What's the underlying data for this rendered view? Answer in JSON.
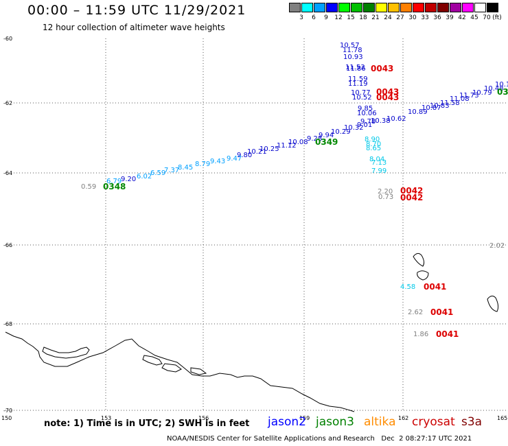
{
  "header": {
    "title": "00:00 – 11:59 UTC 11/29/2021",
    "subtitle": "12 hour collection of altimeter wave heights"
  },
  "legend": {
    "unit": "(ft)",
    "bins": [
      {
        "label": "3",
        "color": "#808080"
      },
      {
        "label": "6",
        "color": "#00ffff"
      },
      {
        "label": "9",
        "color": "#00a0ff"
      },
      {
        "label": "12",
        "color": "#0000ff"
      },
      {
        "label": "15",
        "color": "#00ff00"
      },
      {
        "label": "18",
        "color": "#00c000"
      },
      {
        "label": "21",
        "color": "#008000"
      },
      {
        "label": "24",
        "color": "#ffff00"
      },
      {
        "label": "27",
        "color": "#ffc000"
      },
      {
        "label": "30",
        "color": "#ff8000"
      },
      {
        "label": "33",
        "color": "#ff0000"
      },
      {
        "label": "36",
        "color": "#c00000"
      },
      {
        "label": "39",
        "color": "#800000"
      },
      {
        "label": "42",
        "color": "#a000a0"
      },
      {
        "label": "45",
        "color": "#ff00ff"
      },
      {
        "label": "70",
        "color": "#ffffff"
      },
      {
        "label": "",
        "color": "#000000"
      }
    ]
  },
  "axes": {
    "lat_labels": [
      "-60",
      "-62",
      "-64",
      "-66",
      "-68",
      "-70"
    ],
    "lon_labels": [
      "150",
      "153",
      "156",
      "159",
      "162",
      "165"
    ]
  },
  "observations": [
    {
      "t": "10.57",
      "c": "#0000cc"
    },
    {
      "t": "11.78",
      "c": "#0000cc"
    },
    {
      "t": "10.93",
      "c": "#0000cc"
    },
    {
      "t": "11.53",
      "c": "#0000cc"
    },
    {
      "t": "11.86",
      "c": "#0000cc"
    },
    {
      "t": "11.59",
      "c": "#0000cc"
    },
    {
      "t": "11.19",
      "c": "#0000cc"
    },
    {
      "t": "10.77",
      "c": "#0000cc"
    },
    {
      "t": "10.52",
      "c": "#0000cc"
    },
    {
      "t": "9.85",
      "c": "#0000cc"
    },
    {
      "t": "10.06",
      "c": "#0000cc"
    },
    {
      "t": "9.78",
      "c": "#0000cc"
    },
    {
      "t": "9.01",
      "c": "#0000cc"
    },
    {
      "t": "10.38",
      "c": "#0000cc"
    },
    {
      "t": "10.62",
      "c": "#0000cc"
    },
    {
      "t": "10.89",
      "c": "#0000cc"
    },
    {
      "t": "10.87",
      "c": "#0000cc"
    },
    {
      "t": "10.83",
      "c": "#0000cc"
    },
    {
      "t": "11.58",
      "c": "#0000cc"
    },
    {
      "t": "11.08",
      "c": "#0000cc"
    },
    {
      "t": "11.73",
      "c": "#0000cc"
    },
    {
      "t": "10.79",
      "c": "#0000cc"
    },
    {
      "t": "10.48",
      "c": "#0000cc"
    },
    {
      "t": "10.1",
      "c": "#0000cc"
    },
    {
      "t": "10.32",
      "c": "#0000cc"
    },
    {
      "t": "10.29",
      "c": "#0000cc"
    },
    {
      "t": "9.94",
      "c": "#0000cc"
    },
    {
      "t": "9.28",
      "c": "#0000cc"
    },
    {
      "t": "10.08",
      "c": "#0000cc"
    },
    {
      "t": "11.12",
      "c": "#0000cc"
    },
    {
      "t": "10.25",
      "c": "#0000cc"
    },
    {
      "t": "10.21",
      "c": "#0000cc"
    },
    {
      "t": "9.80",
      "c": "#0000cc"
    },
    {
      "t": "9.47",
      "c": "#00a0ff"
    },
    {
      "t": "9.43",
      "c": "#00a0ff"
    },
    {
      "t": "8.79",
      "c": "#00a0ff"
    },
    {
      "t": "8.45",
      "c": "#00a0ff"
    },
    {
      "t": "7.37",
      "c": "#00a0ff"
    },
    {
      "t": "6.59",
      "c": "#00a0ff"
    },
    {
      "t": "6.02",
      "c": "#00a0ff"
    },
    {
      "t": "9.20",
      "c": "#0000cc"
    },
    {
      "t": "6.79",
      "c": "#00a0ff"
    },
    {
      "t": "0.59",
      "c": "#808080"
    },
    {
      "t": "8.90",
      "c": "#00c8e8"
    },
    {
      "t": "8.70",
      "c": "#00c8e8"
    },
    {
      "t": "8.65",
      "c": "#00c8e8"
    },
    {
      "t": "8.04",
      "c": "#00c8e8"
    },
    {
      "t": "7.13",
      "c": "#00c8e8"
    },
    {
      "t": "7.99",
      "c": "#00c8e8"
    },
    {
      "t": "2.20",
      "c": "#808080"
    },
    {
      "t": "0.73",
      "c": "#808080"
    },
    {
      "t": "2.02",
      "c": "#808080"
    },
    {
      "t": "4.58",
      "c": "#00c8e8"
    },
    {
      "t": "2.62",
      "c": "#808080"
    },
    {
      "t": "1.86",
      "c": "#808080"
    }
  ],
  "pass_times": [
    {
      "t": "0043",
      "c": "#dd0000"
    },
    {
      "t": "0043",
      "c": "#dd0000"
    },
    {
      "t": "0043",
      "c": "#dd0000"
    },
    {
      "t": "0349",
      "c": "#008800"
    },
    {
      "t": "0348",
      "c": "#008800"
    },
    {
      "t": "0042",
      "c": "#dd0000"
    },
    {
      "t": "0042",
      "c": "#dd0000"
    },
    {
      "t": "0041",
      "c": "#dd0000"
    },
    {
      "t": "0041",
      "c": "#dd0000"
    },
    {
      "t": "0041",
      "c": "#dd0000"
    },
    {
      "t": "03",
      "c": "#008800"
    }
  ],
  "footer": {
    "note": "note: 1) Time is in UTC; 2) SWH is in feet",
    "satellites": [
      {
        "name": "jason2",
        "color": "#0000ff"
      },
      {
        "name": "jason3",
        "color": "#008000"
      },
      {
        "name": "altika",
        "color": "#ff8c00"
      },
      {
        "name": "cryosat",
        "color": "#cc0000"
      },
      {
        "name": "s3a",
        "color": "#800000"
      }
    ],
    "credit": "NOAA/NESDIS Center for Satellite Applications and Research   Dec  2 08:27:17 UTC 2021"
  }
}
